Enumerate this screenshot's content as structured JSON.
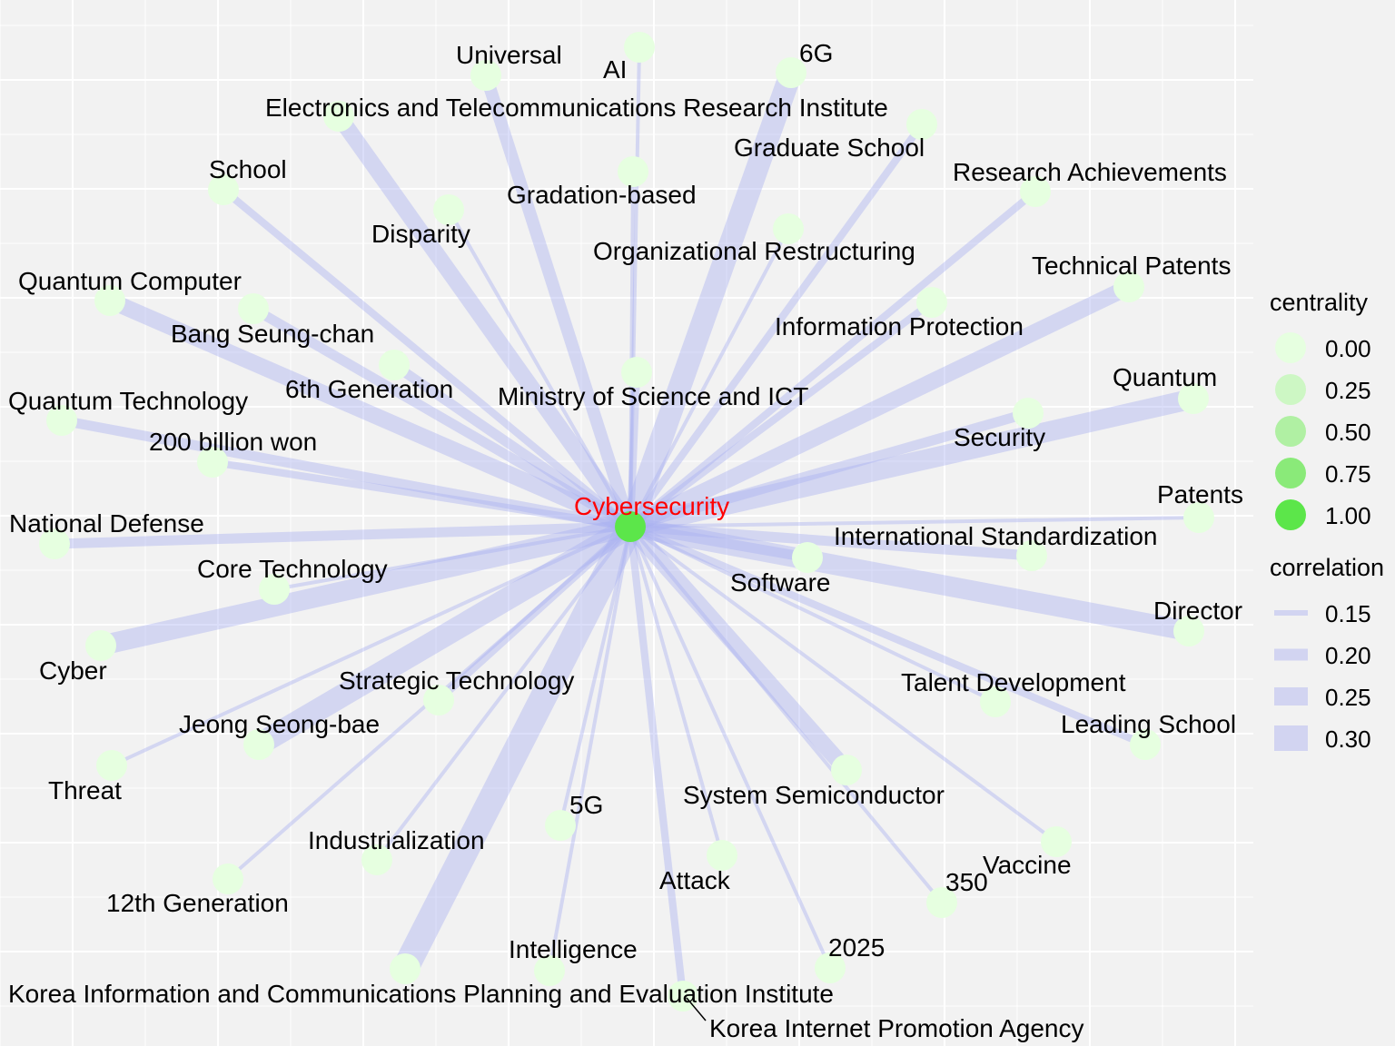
{
  "colors": {
    "background": "#f2f2f2",
    "grid": "#ffffff",
    "edge": "#aab0f0",
    "center_label": "#ff0000",
    "node_low": "#e6ffe0",
    "node_high": "#5ce64a"
  },
  "center": {
    "label": "Cybersecurity",
    "centrality": 1.0
  },
  "nodes": [
    {
      "label": "Universal",
      "correlation": 0.22
    },
    {
      "label": "AI",
      "correlation": 0.15
    },
    {
      "label": "6G",
      "correlation": 0.3
    },
    {
      "label": "Electronics and Telecommunications Research Institute",
      "correlation": 0.25
    },
    {
      "label": "Graduate School",
      "correlation": 0.18
    },
    {
      "label": "School",
      "correlation": 0.18
    },
    {
      "label": "Research Achievements",
      "correlation": 0.18
    },
    {
      "label": "Gradation-based",
      "correlation": 0.15
    },
    {
      "label": "Disparity",
      "correlation": 0.15
    },
    {
      "label": "Organizational Restructuring",
      "correlation": 0.15
    },
    {
      "label": "Quantum Computer",
      "correlation": 0.25
    },
    {
      "label": "Technical Patents",
      "correlation": 0.25
    },
    {
      "label": "Bang Seung-chan",
      "correlation": 0.2
    },
    {
      "label": "Information Protection",
      "correlation": 0.18
    },
    {
      "label": "6th Generation",
      "correlation": 0.2
    },
    {
      "label": "Ministry of Science and ICT",
      "correlation": 0.18
    },
    {
      "label": "Quantum",
      "correlation": 0.28
    },
    {
      "label": "Quantum Technology",
      "correlation": 0.2
    },
    {
      "label": "200 billion won",
      "correlation": 0.18
    },
    {
      "label": "Security",
      "correlation": 0.2
    },
    {
      "label": "Patents",
      "correlation": 0.15
    },
    {
      "label": "National Defense",
      "correlation": 0.2
    },
    {
      "label": "International Standardization",
      "correlation": 0.2
    },
    {
      "label": "Core Technology",
      "correlation": 0.15
    },
    {
      "label": "Software",
      "correlation": 0.2
    },
    {
      "label": "Director",
      "correlation": 0.28
    },
    {
      "label": "Cyber",
      "correlation": 0.28
    },
    {
      "label": "Strategic Technology",
      "correlation": 0.18
    },
    {
      "label": "Talent Development",
      "correlation": 0.15
    },
    {
      "label": "Jeong Seong-bae",
      "correlation": 0.3
    },
    {
      "label": "Leading School",
      "correlation": 0.18
    },
    {
      "label": "Threat",
      "correlation": 0.15
    },
    {
      "label": "System Semiconductor",
      "correlation": 0.25
    },
    {
      "label": "5G",
      "correlation": 0.15
    },
    {
      "label": "Industrialization",
      "correlation": 0.15
    },
    {
      "label": "Vaccine",
      "correlation": 0.15
    },
    {
      "label": "Attack",
      "correlation": 0.15
    },
    {
      "label": "350",
      "correlation": 0.15
    },
    {
      "label": "12th Generation",
      "correlation": 0.15
    },
    {
      "label": "Intelligence",
      "correlation": 0.15
    },
    {
      "label": "2025",
      "correlation": 0.15
    },
    {
      "label": "Korea Information and Communications Planning and Evaluation Institute",
      "correlation": 0.33
    },
    {
      "label": "Korea Internet Promotion Agency",
      "correlation": 0.18
    }
  ],
  "legend": {
    "centrality": {
      "title": "centrality",
      "items": [
        {
          "label": "0.00",
          "color": "#e6ffe0"
        },
        {
          "label": "0.25",
          "color": "#cdf7c4"
        },
        {
          "label": "0.50",
          "color": "#b0f0a3"
        },
        {
          "label": "0.75",
          "color": "#8aea79"
        },
        {
          "label": "1.00",
          "color": "#5ce64a"
        }
      ]
    },
    "correlation": {
      "title": "correlation",
      "items": [
        {
          "label": "0.15"
        },
        {
          "label": "0.20"
        },
        {
          "label": "0.25"
        },
        {
          "label": "0.30"
        }
      ]
    }
  }
}
